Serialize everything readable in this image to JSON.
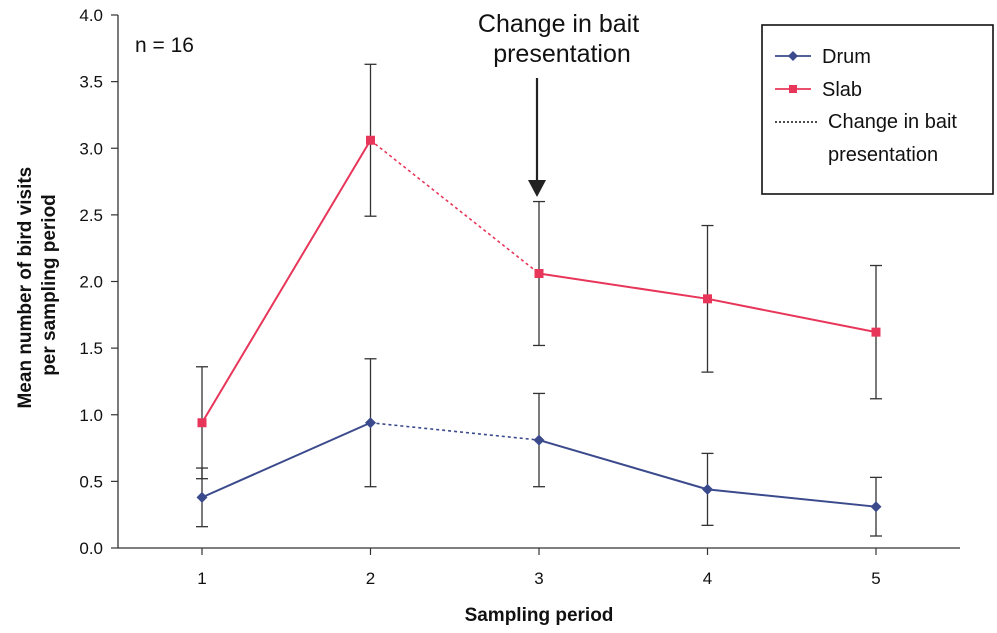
{
  "chart_data": {
    "type": "line",
    "xlabel": "Sampling period",
    "ylabel_lines": [
      "Mean number of bird visits",
      "per sampling period"
    ],
    "note": "n = 16",
    "categories": [
      "1",
      "2",
      "3",
      "4",
      "5"
    ],
    "ylim": [
      0,
      4
    ],
    "yticks": [
      "0.0",
      "0.5",
      "1.0",
      "1.5",
      "2.0",
      "2.5",
      "3.0",
      "3.5",
      "4.0"
    ],
    "grid": false,
    "legend_position": "top-right",
    "series": [
      {
        "name": "Drum",
        "color": "#3b4a8c",
        "marker": "diamond",
        "values": [
          0.38,
          0.94,
          0.81,
          0.44,
          0.31
        ],
        "error": [
          0.22,
          0.48,
          0.35,
          0.27,
          0.22
        ]
      },
      {
        "name": "Slab",
        "color": "#e8365a",
        "marker": "square",
        "values": [
          0.94,
          3.06,
          2.06,
          1.87,
          1.62
        ],
        "error": [
          0.42,
          0.57,
          0.54,
          0.55,
          0.5
        ]
      }
    ],
    "dotted_segment": {
      "from_index": 1,
      "to_index": 2
    },
    "annotation": {
      "lines": [
        "Change in bait",
        "presentation"
      ],
      "points_to_category": "3"
    },
    "legend": {
      "entries": [
        "Drum",
        "Slab"
      ],
      "dotted_entry_lines": [
        "Change in bait",
        "presentation"
      ]
    }
  }
}
